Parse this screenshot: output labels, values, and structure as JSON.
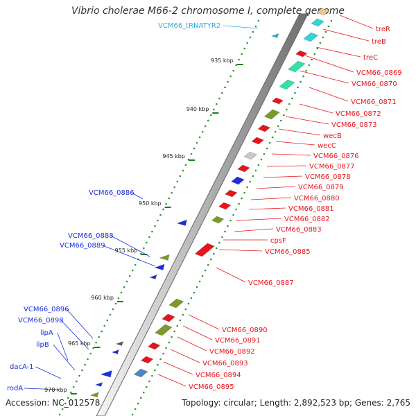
{
  "title": "Vibrio cholerae M66-2 chromosome I, complete genome",
  "accession": "Accession: NC_012578",
  "topology": "Topology: circular; Length: 2,892,523 bp; Genes: 2,765",
  "tick_labels": [
    "935 kbp",
    "940 kbp",
    "945 kbp",
    "950 kbp",
    "955 kbp",
    "960 kbp",
    "965 kbp",
    "970 kbp"
  ],
  "forward_labels": [
    "treR",
    "treB",
    "treC",
    "VCM66_0869",
    "VCM66_0870",
    "VCM66_0871",
    "VCM66_0872",
    "VCM66_0873",
    "wecB",
    "wecC",
    "VCM66_0876",
    "VCM66_0877",
    "VCM66_0878",
    "VCM66_0879",
    "VCM66_0880",
    "VCM66_0881",
    "VCM66_0882",
    "VCM66_0883",
    "cpsF",
    "VCM66_0885",
    "VCM66_0887",
    "VCM66_0890",
    "VCM66_0891",
    "VCM66_0892",
    "VCM66_0893",
    "VCM66_0894",
    "VCM66_0895"
  ],
  "reverse_labels": [
    "VCM66_0886",
    "VCM66_0888",
    "VCM66_0889",
    "VCM66_0896",
    "VCM66_0898",
    "lipA",
    "lipB",
    "dacA-1",
    "rodA"
  ],
  "trna_label": "VCM66_tRNATYR2",
  "colors": {
    "forward_cds": "#e8141c",
    "reverse_cds": "#1b2fe0",
    "trna": "#2aaee0",
    "olive": "#7b9a2a",
    "teal": "#33e0a8",
    "cyan": "#30d5d8",
    "green_dots": "#2a9a2a",
    "backbone": "#9a9a9a"
  }
}
